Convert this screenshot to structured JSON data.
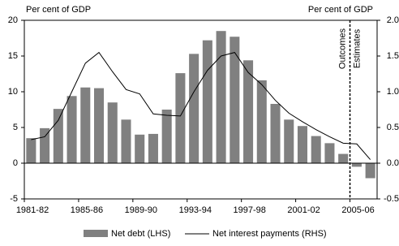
{
  "chart_data": {
    "type": "bar-line",
    "left_axis_label": "Per cent of GDP",
    "right_axis_label": "Per cent of GDP",
    "annotations": [
      "Outcomes",
      "Estimates"
    ],
    "categories": [
      "1981-82",
      null,
      null,
      null,
      "1985-86",
      null,
      null,
      null,
      "1989-90",
      null,
      null,
      null,
      "1993-94",
      null,
      null,
      null,
      "1997-98",
      null,
      null,
      null,
      "2001-02",
      null,
      null,
      null,
      "2005-06",
      null
    ],
    "series": [
      {
        "name": "Net debt (LHS)",
        "color": "#808080",
        "type": "bar",
        "values": [
          3.5,
          4.9,
          7.6,
          9.4,
          10.6,
          10.5,
          8.5,
          6.1,
          4.0,
          4.1,
          7.5,
          12.6,
          15.3,
          17.2,
          18.5,
          17.7,
          14.4,
          11.6,
          8.3,
          6.1,
          5.2,
          3.8,
          2.8,
          1.3,
          -0.5,
          -2.1
        ]
      },
      {
        "name": "Net interest payments (RHS)",
        "color": "#000000",
        "type": "line",
        "axis": "y2",
        "values": [
          0.33,
          0.37,
          0.6,
          1.0,
          1.4,
          1.55,
          1.28,
          1.03,
          0.97,
          0.69,
          0.67,
          0.66,
          1.0,
          1.3,
          1.5,
          1.55,
          1.27,
          1.1,
          0.88,
          0.7,
          0.58,
          0.47,
          0.37,
          0.28,
          0.27,
          0.05
        ]
      }
    ],
    "ylim": [
      -5,
      20
    ],
    "yticks": [
      -5,
      0,
      5,
      10,
      15,
      20
    ],
    "y2lim": [
      -0.5,
      2.0
    ],
    "y2ticks": [
      -0.5,
      {
        "value": 0,
        "label": "0.0"
      },
      0.5,
      {
        "value": 1,
        "label": "1.0"
      },
      1.5,
      {
        "value": 2,
        "label": "2.0"
      }
    ]
  }
}
